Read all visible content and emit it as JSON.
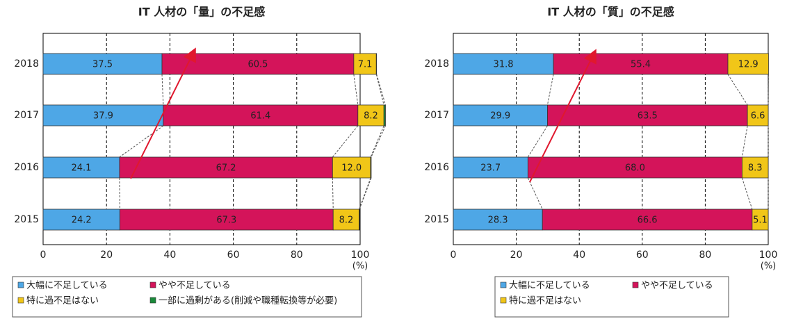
{
  "chart_data": [
    {
      "type": "bar",
      "title": "IT 人材の「量」の不足感",
      "orientation": "horizontal",
      "stacked": true,
      "categories": [
        "2018",
        "2017",
        "2016",
        "2015"
      ],
      "series": [
        {
          "name": "大幅に不足している",
          "color": "#4ea7e6",
          "values": [
            37.5,
            37.9,
            24.1,
            24.2
          ],
          "value_labels": [
            "37.5",
            "37.9",
            "24.1",
            "24.2"
          ]
        },
        {
          "name": "やや不足している",
          "color": "#d4145a",
          "values": [
            60.5,
            61.4,
            67.2,
            67.3
          ],
          "value_labels": [
            "60.5",
            "61.4",
            "67.2",
            "67.3"
          ]
        },
        {
          "name": "特に過不足はない",
          "color": "#f1c618",
          "values": [
            7.1,
            8.2,
            12.0,
            8.2
          ],
          "value_labels": [
            "7.1",
            "8.2",
            "12.0",
            "8.2"
          ]
        },
        {
          "name": "一部に過剰がある(削減や職種転換等が必要)",
          "color": "#1a8a3a",
          "values": [
            0.1,
            0.5,
            0.2,
            0.1
          ]
        }
      ],
      "xlim": [
        0,
        100
      ],
      "xticks": [
        0,
        20,
        40,
        60,
        80,
        100
      ],
      "x_unit": "(%)",
      "grid": true
    },
    {
      "type": "bar",
      "title": "IT 人材の「質」の不足感",
      "orientation": "horizontal",
      "stacked": true,
      "categories": [
        "2018",
        "2017",
        "2016",
        "2015"
      ],
      "series": [
        {
          "name": "大幅に不足している",
          "color": "#4ea7e6",
          "values": [
            31.8,
            29.9,
            23.7,
            28.3
          ],
          "value_labels": [
            "31.8",
            "29.9",
            "23.7",
            "28.3"
          ]
        },
        {
          "name": "やや不足している",
          "color": "#d4145a",
          "values": [
            55.4,
            63.5,
            68.0,
            66.6
          ],
          "value_labels": [
            "55.4",
            "63.5",
            "68.0",
            "66.6"
          ]
        },
        {
          "name": "特に過不足はない",
          "color": "#f1c618",
          "values": [
            12.9,
            6.6,
            8.3,
            5.1
          ],
          "value_labels": [
            "12.9",
            "6.6",
            "8.3",
            "5.1"
          ]
        }
      ],
      "xlim": [
        0,
        100
      ],
      "xticks": [
        0,
        20,
        40,
        60,
        80,
        100
      ],
      "x_unit": "(%)",
      "grid": true
    }
  ]
}
